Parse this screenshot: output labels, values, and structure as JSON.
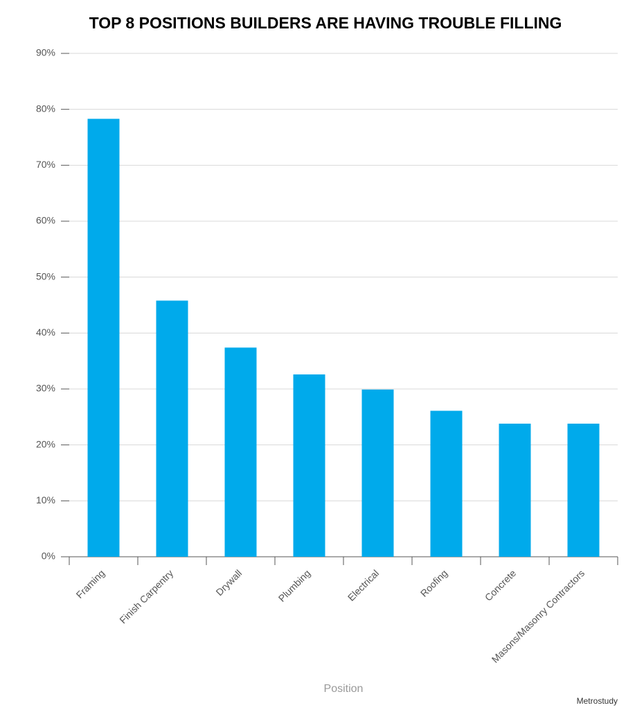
{
  "chart_data": {
    "type": "bar",
    "title": "TOP 8 POSITIONS BUILDERS ARE HAVING TROUBLE FILLING",
    "x_label": "Position",
    "source": "Metrostudy",
    "categories": [
      "Framing",
      "Finish Carpentry",
      "Drywall",
      "Plumbing",
      "Electrical",
      "Roofing",
      "Concrete",
      "Masons/Masonry Contractors"
    ],
    "values": [
      78.3,
      45.8,
      37.4,
      32.6,
      29.9,
      26.1,
      23.8,
      23.8
    ],
    "color": "#00aaeb",
    "ylim": [
      0,
      90
    ],
    "yticks": [
      {
        "value": 0,
        "label": "0%"
      },
      {
        "value": 10,
        "label": "10%"
      },
      {
        "value": 20,
        "label": "20%"
      },
      {
        "value": 30,
        "label": "30%"
      },
      {
        "value": 40,
        "label": "40%"
      },
      {
        "value": 50,
        "label": "50%"
      },
      {
        "value": 60,
        "label": "60%"
      },
      {
        "value": 70,
        "label": "70%"
      },
      {
        "value": 80,
        "label": "80%"
      },
      {
        "value": 90,
        "label": "90%"
      }
    ],
    "grid": true
  }
}
